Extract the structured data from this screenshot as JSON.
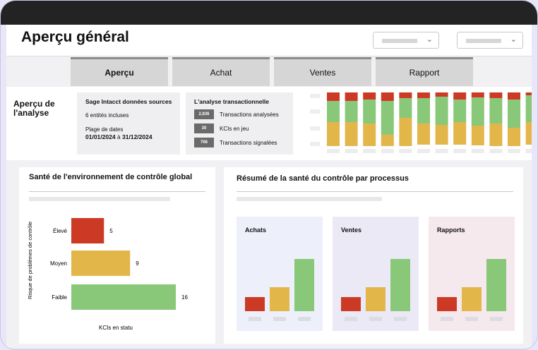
{
  "header": {
    "title": "Aperçu général"
  },
  "tabs": [
    {
      "label": "Aperçu",
      "active": true
    },
    {
      "label": "Achat",
      "active": false
    },
    {
      "label": "Ventes",
      "active": false
    },
    {
      "label": "Rapport",
      "active": false
    }
  ],
  "summary": {
    "title": "Aperçu de l'analyse",
    "source_title": "Sage Intacct données sources",
    "entities": "6 entités incluses",
    "date_label": "Plage de dates",
    "date_from": "01/01/2024",
    "date_sep": "à",
    "date_to": "31/12/2024",
    "analysis_title": "L'analyse transactionnelle",
    "metrics": [
      {
        "value": "2,836",
        "label": "Transactions analysées"
      },
      {
        "value": "30",
        "label": "KCIs en jeu"
      },
      {
        "value": "706",
        "label": "Transactions signalées"
      }
    ]
  },
  "colors": {
    "red": "#cc3a26",
    "yellow": "#e3b64a",
    "green": "#88c878",
    "gray_badge": "#6a6a6a"
  },
  "mini_chart": {
    "type": "bar",
    "stacked": true,
    "columns": [
      {
        "red": 12,
        "green": 30,
        "yellow": 34
      },
      {
        "red": 12,
        "green": 30,
        "yellow": 34
      },
      {
        "red": 10,
        "green": 34,
        "yellow": 32
      },
      {
        "red": 12,
        "green": 48,
        "yellow": 16
      },
      {
        "red": 8,
        "green": 28,
        "yellow": 40
      },
      {
        "red": 8,
        "green": 36,
        "yellow": 30
      },
      {
        "red": 6,
        "green": 40,
        "yellow": 28
      },
      {
        "red": 10,
        "green": 32,
        "yellow": 32
      },
      {
        "red": 7,
        "green": 40,
        "yellow": 28
      },
      {
        "red": 8,
        "green": 36,
        "yellow": 32
      },
      {
        "red": 10,
        "green": 40,
        "yellow": 26
      },
      {
        "red": 4,
        "green": 38,
        "yellow": 32
      }
    ]
  },
  "left_panel": {
    "title": "Santé de l'environnement de contrôle global",
    "ylabel": "Risque de problèmes de contrôle",
    "xlabel": "KCIs en statu"
  },
  "right_panel": {
    "title": "Résumé de la santé du contrôle par processus"
  },
  "chart_data": [
    {
      "type": "bar",
      "orientation": "horizontal",
      "title": "Santé de l'environnement de contrôle global",
      "ylabel": "Risque de problèmes de contrôle",
      "xlabel": "KCIs en statu",
      "categories": [
        "Élevé",
        "Moyen",
        "Faible"
      ],
      "values": [
        5,
        9,
        16
      ],
      "colors": [
        "#cc3a26",
        "#e3b64a",
        "#88c878"
      ],
      "xlim": [
        0,
        16
      ]
    },
    {
      "type": "bar",
      "title": "Résumé de la santé du contrôle par processus",
      "panels": [
        {
          "name": "Achats",
          "values": [
            1,
            1.7,
            3.7
          ],
          "colors": [
            "#cc3a26",
            "#e3b64a",
            "#88c878"
          ],
          "bg": "#edf0fa"
        },
        {
          "name": "Ventes",
          "values": [
            1,
            1.7,
            3.7
          ],
          "colors": [
            "#cc3a26",
            "#e3b64a",
            "#88c878"
          ],
          "bg": "#ece9f7"
        },
        {
          "name": "Rapports",
          "values": [
            1,
            1.7,
            3.7
          ],
          "colors": [
            "#cc3a26",
            "#e3b64a",
            "#88c878"
          ],
          "bg": "#f6e9ee"
        }
      ],
      "ylim": [
        0,
        4
      ]
    }
  ]
}
